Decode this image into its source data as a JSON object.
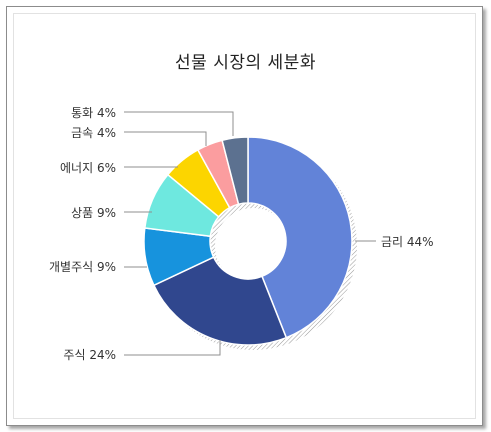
{
  "chart_data": {
    "type": "pie",
    "title": "선물 시장의 세분화",
    "categories": [
      "금리",
      "주식",
      "개별주식",
      "상품",
      "에너지",
      "금속",
      "통화"
    ],
    "values": [
      44,
      24,
      9,
      9,
      6,
      4,
      4
    ],
    "labels": [
      "금리  44%",
      "주식  24%",
      "개별주식  9%",
      "상품  9%",
      "에너지  6%",
      "금속  4%",
      "통화  4%"
    ],
    "colors": [
      "#6283d8",
      "#30478e",
      "#1793dd",
      "#6ee8df",
      "#fcd500",
      "#fb9d9f",
      "#5c7190"
    ],
    "donut": true,
    "legend": "none"
  }
}
